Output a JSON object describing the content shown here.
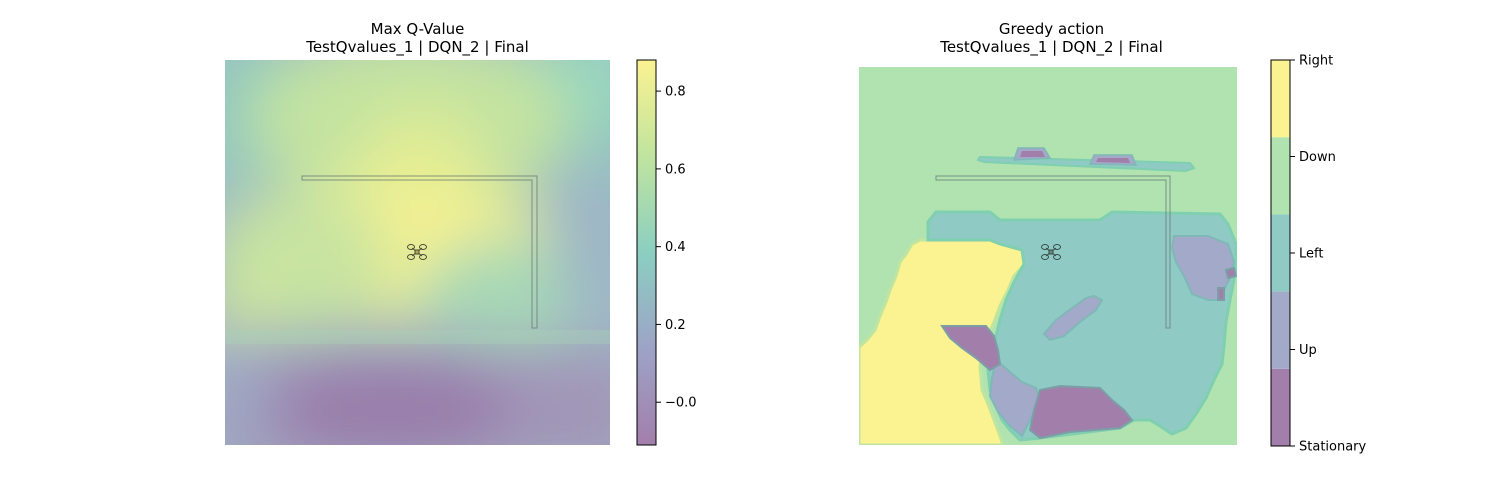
{
  "chart_data": [
    {
      "type": "heatmap",
      "title": "Max Q-Value",
      "subtitle": "TestQvalues_1 | DQN_2 | Final",
      "colorbar": {
        "ticks": [
          -0.0,
          0.2,
          0.4,
          0.6,
          0.8
        ],
        "tick_labels": [
          "−0.0",
          "0.2",
          "0.4",
          "0.6",
          "0.8"
        ],
        "range": [
          -0.11,
          0.88
        ],
        "colormap": "viridis (alpha 0.5)"
      },
      "grid": false,
      "axes_visible": false,
      "overlay_icon": "drone-icon"
    },
    {
      "type": "heatmap",
      "title": "Greedy action",
      "subtitle": "TestQvalues_1 | DQN_2 | Final",
      "colorbar": {
        "categories": [
          "Stationary",
          "Up",
          "Left",
          "Down",
          "Right"
        ],
        "colors": [
          "#a27fab",
          "#a3a9c9",
          "#8fcbc4",
          "#b0e3b0",
          "#fbf291"
        ],
        "range": [
          0,
          4
        ]
      },
      "grid": false,
      "axes_visible": false,
      "overlay_icon": "drone-icon"
    }
  ],
  "colors": {
    "stationary": "#a27fab",
    "up": "#a3a9c9",
    "left": "#8fcbc4",
    "down": "#b0e3b0",
    "right": "#fbf291"
  }
}
